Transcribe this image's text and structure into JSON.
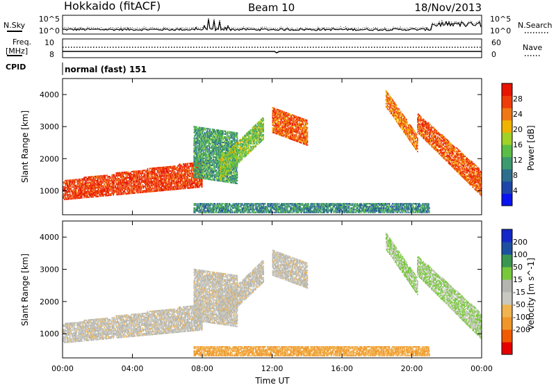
{
  "header": {
    "station": "Hokkaido (fitACF)",
    "beam": "Beam 10",
    "date": "18/Nov/2013"
  },
  "noise_panel": {
    "left_label": "N.Sky",
    "right_label": "N.Search",
    "left_ticks": [
      "10^5",
      "10^0"
    ],
    "right_ticks": [
      "10^5",
      "10^0"
    ]
  },
  "freq_panel": {
    "left_label": "Freq.",
    "left_unit": "[MHz]",
    "right_label": "Nave",
    "left_ticks": [
      "10",
      "8"
    ],
    "right_ticks": [
      "60",
      "0"
    ]
  },
  "cpid": {
    "label": "CPID",
    "value": "normal (fast) 151"
  },
  "colors": {
    "power_scale": [
      "#0a14f0",
      "#1e46a8",
      "#2d6e8c",
      "#3c9a6e",
      "#5abe46",
      "#a0d228",
      "#f0b400",
      "#f07814",
      "#f03c0a",
      "#e61400"
    ],
    "velocity_scale": [
      "#e60000",
      "#f05a00",
      "#f09628",
      "#f0b450",
      "#c8c8c0",
      "#b4b4b0",
      "#78c83c",
      "#3c9650",
      "#1e50a0",
      "#1428c8"
    ]
  },
  "chart_data": [
    {
      "type": "heatmap",
      "name": "power",
      "ylabel": "Slant Range [km]",
      "yticks": [
        1000,
        2000,
        3000,
        4000
      ],
      "ylim": [
        250,
        4500
      ],
      "xlim": [
        0,
        24
      ],
      "colorbar": {
        "label": "Power [dB]",
        "ticks": [
          "4",
          "8",
          "12",
          "16",
          "20",
          "24",
          "28"
        ],
        "range": [
          0,
          32
        ]
      },
      "structures": [
        {
          "start_h": 0.0,
          "end_h": 8.0,
          "low_km": [
            700,
            1100
          ],
          "high_km": [
            1300,
            1900
          ],
          "dB": 28
        },
        {
          "start_h": 7.5,
          "end_h": 10.0,
          "low_km": [
            1400,
            1200
          ],
          "high_km": [
            3000,
            2800
          ],
          "dB": 12
        },
        {
          "start_h": 9.0,
          "end_h": 11.5,
          "low_km": [
            1300,
            2600
          ],
          "high_km": [
            2000,
            3300
          ],
          "dB": 16
        },
        {
          "start_h": 12.0,
          "end_h": 14.0,
          "low_km": [
            2800,
            2400
          ],
          "high_km": [
            3600,
            3200
          ],
          "dB": 26
        },
        {
          "start_h": 18.5,
          "end_h": 20.3,
          "low_km": [
            3600,
            2200
          ],
          "high_km": [
            4100,
            2700
          ],
          "dB": 24
        },
        {
          "start_h": 20.3,
          "end_h": 24.0,
          "low_km": [
            2800,
            800
          ],
          "high_km": [
            3400,
            1600
          ],
          "dB": 26
        },
        {
          "start_h": 7.5,
          "end_h": 21.0,
          "low_km": [
            300,
            300
          ],
          "high_km": [
            600,
            600
          ],
          "dB": 10
        }
      ]
    },
    {
      "type": "heatmap",
      "name": "velocity",
      "ylabel": "Slant Range [km]",
      "xlabel": "Time UT",
      "xticks": [
        "00:00",
        "04:00",
        "08:00",
        "12:00",
        "16:00",
        "20:00",
        "00:00"
      ],
      "yticks": [
        1000,
        2000,
        3000,
        4000
      ],
      "ylim": [
        250,
        4500
      ],
      "xlim": [
        0,
        24
      ],
      "colorbar": {
        "label": "Velocity [m s^-1]",
        "ticks": [
          "200",
          "100",
          "50",
          "15",
          "-15",
          "-50",
          "-100",
          "-200"
        ],
        "range": [
          -250,
          250
        ]
      }
    }
  ]
}
